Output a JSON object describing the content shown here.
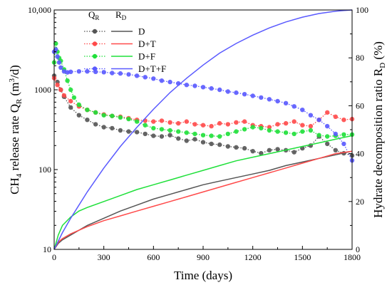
{
  "chart_data": {
    "type": "line",
    "xlabel": "Time (days)",
    "ylabel_left": {
      "main": "CH",
      "sub4": "4",
      "rest": " release rate Q",
      "subR": "R",
      "unit_pre": " (m",
      "sup3": "3",
      "unit_post": "/d)"
    },
    "ylabel_right": {
      "main": "Hydrate decomposition ratio R",
      "subD": "D",
      "rest": " (%)"
    },
    "x_ticks": [
      "0",
      "300",
      "600",
      "900",
      "1200",
      "1500",
      "1800"
    ],
    "y_left_ticks": [
      "10",
      "100",
      "1000",
      "10,000"
    ],
    "y_right_ticks": [
      "0",
      "20",
      "40",
      "60",
      "80",
      "100"
    ],
    "xlim": [
      0,
      1800
    ],
    "ylim_left": [
      10,
      10000
    ],
    "ylim_right": [
      0,
      100
    ],
    "y_left_scale": "log",
    "legend": {
      "col1_header": {
        "main": "Q",
        "sub": "R"
      },
      "col2_header": {
        "main": "R",
        "sub": "D"
      },
      "labels": [
        "D",
        "D+T",
        "D+F",
        "D+T+F"
      ]
    },
    "colors": {
      "D": "#555555",
      "D+T": "#ff4a4a",
      "D+F": "#1fe03a",
      "D+T+F": "#5a5aff"
    },
    "series_QR": [
      {
        "name": "D",
        "x": [
          0,
          20,
          40,
          60,
          100,
          150,
          200,
          250,
          300,
          350,
          400,
          450,
          500,
          550,
          600,
          650,
          700,
          750,
          800,
          850,
          900,
          950,
          1000,
          1050,
          1100,
          1150,
          1200,
          1250,
          1300,
          1350,
          1400,
          1450,
          1500,
          1550,
          1600,
          1650,
          1700,
          1750,
          1800
        ],
        "y": [
          1500,
          1250,
          1000,
          820,
          600,
          480,
          420,
          370,
          340,
          330,
          310,
          300,
          295,
          280,
          265,
          260,
          270,
          245,
          230,
          240,
          220,
          210,
          205,
          195,
          190,
          185,
          170,
          160,
          175,
          180,
          175,
          165,
          185,
          200,
          260,
          210,
          175,
          160,
          150
        ]
      },
      {
        "name": "D+T",
        "x": [
          0,
          20,
          40,
          60,
          100,
          150,
          200,
          250,
          300,
          350,
          400,
          450,
          500,
          550,
          600,
          650,
          700,
          750,
          800,
          850,
          900,
          950,
          1000,
          1050,
          1100,
          1150,
          1200,
          1250,
          1300,
          1350,
          1400,
          1450,
          1500,
          1550,
          1600,
          1650,
          1700,
          1750,
          1800
        ],
        "y": [
          1400,
          1150,
          1000,
          850,
          720,
          620,
          560,
          520,
          490,
          470,
          460,
          440,
          420,
          410,
          400,
          410,
          390,
          380,
          400,
          370,
          360,
          350,
          380,
          370,
          390,
          400,
          360,
          350,
          340,
          370,
          380,
          400,
          360,
          350,
          420,
          520,
          460,
          420,
          430
        ]
      },
      {
        "name": "D+F",
        "x": [
          0,
          10,
          20,
          30,
          40,
          60,
          80,
          100,
          120,
          150,
          200,
          250,
          300,
          350,
          400,
          450,
          500,
          550,
          600,
          650,
          700,
          750,
          800,
          850,
          900,
          950,
          1000,
          1050,
          1100,
          1150,
          1200,
          1250,
          1300,
          1350,
          1400,
          1450,
          1500,
          1550,
          1600,
          1650,
          1700,
          1750,
          1800
        ],
        "y": [
          2200,
          3800,
          3000,
          2500,
          2300,
          1800,
          1300,
          1000,
          800,
          650,
          560,
          520,
          480,
          470,
          450,
          430,
          400,
          360,
          330,
          320,
          310,
          300,
          290,
          280,
          270,
          265,
          260,
          280,
          300,
          320,
          340,
          330,
          310,
          300,
          290,
          280,
          300,
          310,
          270,
          260,
          265,
          275,
          275
        ]
      },
      {
        "name": "D+T+F",
        "x": [
          0,
          10,
          20,
          30,
          40,
          60,
          80,
          100,
          150,
          200,
          250,
          300,
          350,
          400,
          450,
          500,
          550,
          600,
          650,
          700,
          750,
          800,
          850,
          900,
          950,
          1000,
          1050,
          1100,
          1150,
          1200,
          1250,
          1300,
          1350,
          1400,
          1450,
          1500,
          1550,
          1600,
          1650,
          1700,
          1750,
          1800
        ],
        "y": [
          3000,
          3200,
          2600,
          2200,
          1900,
          1700,
          1650,
          1680,
          1700,
          1700,
          1680,
          1660,
          1620,
          1600,
          1560,
          1500,
          1440,
          1380,
          1300,
          1250,
          1200,
          1150,
          1120,
          1080,
          1040,
          1000,
          950,
          920,
          880,
          840,
          800,
          760,
          720,
          680,
          620,
          560,
          480,
          420,
          350,
          280,
          210,
          130
        ]
      }
    ],
    "series_RD": [
      {
        "name": "D",
        "x": [
          0,
          25,
          50,
          100,
          200,
          300,
          400,
          500,
          600,
          700,
          800,
          900,
          1000,
          1100,
          1200,
          1300,
          1400,
          1500,
          1600,
          1700,
          1800
        ],
        "y": [
          0,
          2.5,
          4,
          6,
          10,
          13,
          16,
          18.5,
          21,
          23,
          25,
          27,
          28.5,
          30,
          31.5,
          33,
          35,
          36.5,
          38,
          39.5,
          41
        ]
      },
      {
        "name": "D+T",
        "x": [
          0,
          25,
          50,
          100,
          200,
          300,
          400,
          500,
          600,
          700,
          800,
          900,
          1000,
          1100,
          1200,
          1300,
          1400,
          1500,
          1600,
          1700,
          1800
        ],
        "y": [
          0,
          3,
          4.5,
          6.5,
          9.5,
          12,
          14,
          16,
          18,
          20,
          22,
          24,
          26,
          28,
          30,
          32,
          34,
          36,
          38,
          40,
          41
        ]
      },
      {
        "name": "D+F",
        "x": [
          0,
          25,
          50,
          100,
          150,
          200,
          300,
          400,
          500,
          600,
          700,
          800,
          900,
          1000,
          1100,
          1200,
          1300,
          1400,
          1500,
          1600,
          1700,
          1800
        ],
        "y": [
          0,
          6,
          10,
          13.5,
          16,
          17.5,
          20,
          22.5,
          25,
          27,
          29,
          31,
          33,
          35,
          37,
          38.5,
          40,
          41.5,
          43,
          44.5,
          46,
          47.5
        ]
      },
      {
        "name": "D+T+F",
        "x": [
          0,
          50,
          100,
          200,
          300,
          400,
          500,
          600,
          700,
          800,
          900,
          1000,
          1100,
          1200,
          1300,
          1400,
          1500,
          1600,
          1700,
          1750,
          1800
        ],
        "y": [
          0,
          7,
          13,
          24,
          34,
          43,
          51,
          58.5,
          65.5,
          71.5,
          77,
          82,
          86,
          89.5,
          92.5,
          95,
          97,
          98.5,
          99.5,
          99.8,
          100
        ]
      }
    ]
  }
}
